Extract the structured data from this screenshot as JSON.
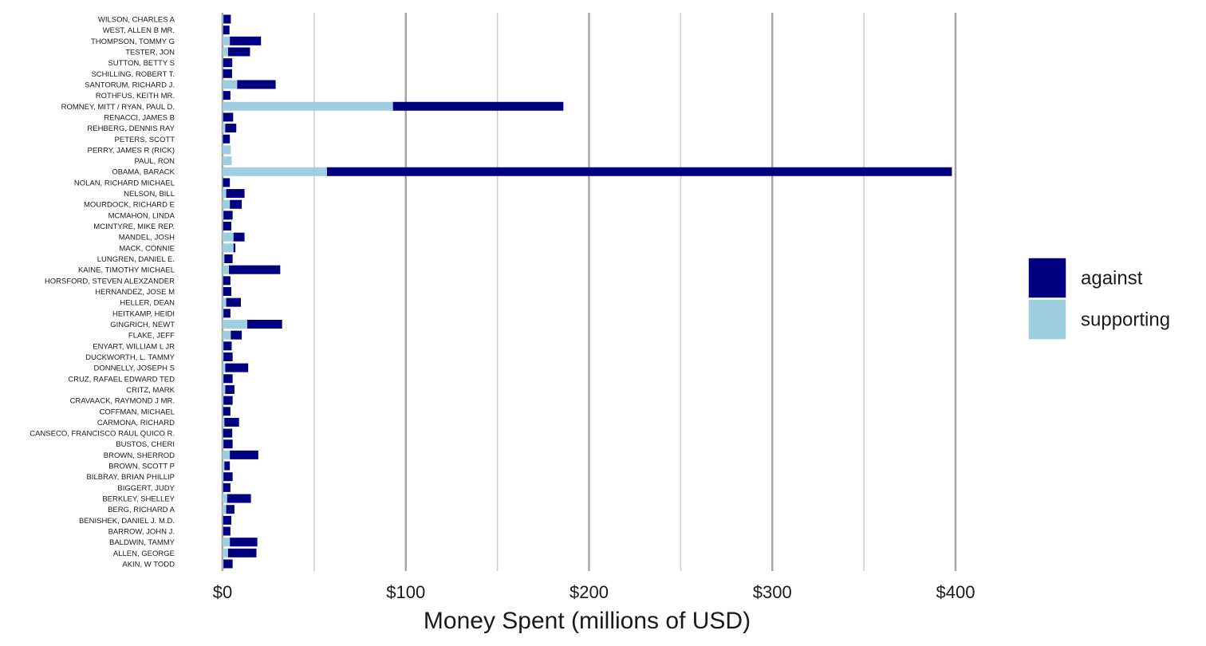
{
  "chart_data": {
    "type": "bar",
    "orientation": "horizontal",
    "stacked": true,
    "xlabel": "Money Spent (millions of USD)",
    "ylabel": "",
    "xlim": [
      0,
      400
    ],
    "x_ticks": [
      0,
      100,
      200,
      300,
      400
    ],
    "x_tick_labels": [
      "$0",
      "$100",
      "$200",
      "$300",
      "$400"
    ],
    "grid": true,
    "legend_position": "right",
    "categories": [
      "WILSON, CHARLES A",
      "WEST, ALLEN B MR.",
      "THOMPSON, TOMMY G",
      "TESTER, JON",
      "SUTTON, BETTY S",
      "SCHILLING, ROBERT T.",
      "SANTORUM, RICHARD J.",
      "ROTHFUS, KEITH MR.",
      "ROMNEY, MITT / RYAN, PAUL D.",
      "RENACCI, JAMES B",
      "REHBERG, DENNIS RAY",
      "PETERS, SCOTT",
      "PERRY, JAMES R (RICK)",
      "PAUL, RON",
      "OBAMA, BARACK",
      "NOLAN, RICHARD MICHAEL",
      "NELSON, BILL",
      "MOURDOCK, RICHARD E",
      "MCMAHON, LINDA",
      "MCINTYRE, MIKE REP.",
      "MANDEL, JOSH",
      "MACK, CONNIE",
      "LUNGREN, DANIEL E.",
      "KAINE, TIMOTHY MICHAEL",
      "HORSFORD, STEVEN ALEXZANDER",
      "HERNANDEZ, JOSE M",
      "HELLER, DEAN",
      "HEITKAMP, HEIDI",
      "GINGRICH, NEWT",
      "FLAKE, JEFF",
      "ENYART, WILLIAM L JR",
      "DUCKWORTH, L. TAMMY",
      "DONNELLY, JOSEPH S",
      "CRUZ, RAFAEL EDWARD TED",
      "CRITZ, MARK",
      "CRAVAACK, RAYMOND J MR.",
      "COFFMAN, MICHAEL",
      "CARMONA, RICHARD",
      "CANSECO, FRANCISCO RAUL QUICO R.",
      "BUSTOS, CHERI",
      "BROWN, SHERROD",
      "BROWN, SCOTT P",
      "BILBRAY, BRIAN PHILLIP",
      "BIGGERT, JUDY",
      "BERKLEY, SHELLEY",
      "BERG, RICHARD A",
      "BENISHEK, DANIEL J. M.D.",
      "BARROW, JOHN J.",
      "BALDWIN, TAMMY",
      "ALLEN, GEORGE",
      "AKIN, W TODD"
    ],
    "series": [
      {
        "name": "supporting",
        "color": "#9ecfe0",
        "values": [
          0.5,
          0.3,
          4.0,
          3.0,
          0.3,
          0.2,
          8.0,
          0.3,
          93.0,
          0.3,
          1.5,
          0.2,
          4.5,
          5.0,
          57.0,
          0.2,
          2.0,
          4.0,
          0.5,
          0.3,
          6.0,
          6.0,
          1.0,
          3.5,
          0.3,
          0.3,
          2.0,
          0.5,
          13.5,
          4.5,
          0.5,
          0.5,
          1.5,
          0.5,
          1.5,
          0.5,
          0.3,
          1.0,
          0.3,
          0.5,
          4.0,
          1.0,
          0.5,
          0.3,
          2.5,
          2.0,
          0.3,
          0.3,
          4.0,
          3.0,
          0.5
        ]
      },
      {
        "name": "against",
        "color": "#000080",
        "values": [
          4.0,
          3.5,
          17.0,
          12.0,
          5.0,
          5.0,
          21.0,
          4.0,
          93.0,
          5.5,
          6.0,
          3.8,
          0.0,
          0.0,
          341.0,
          3.8,
          10.0,
          6.5,
          5.0,
          4.5,
          6.0,
          1.0,
          4.5,
          28.0,
          4.0,
          4.5,
          8.0,
          3.8,
          19.0,
          6.0,
          4.5,
          5.0,
          12.5,
          5.0,
          5.0,
          5.0,
          4.0,
          8.0,
          5.0,
          5.0,
          15.5,
          3.0,
          5.0,
          4.0,
          13.0,
          4.5,
          4.5,
          4.0,
          15.0,
          15.5,
          5.0
        ]
      }
    ],
    "legend": [
      {
        "label": "against",
        "color": "#000080"
      },
      {
        "label": "supporting",
        "color": "#9ecfe0"
      }
    ],
    "colors": {
      "grid_major": "#a6a6a6",
      "grid_minor": "#cccccc",
      "text": "#1a1a1a"
    }
  }
}
